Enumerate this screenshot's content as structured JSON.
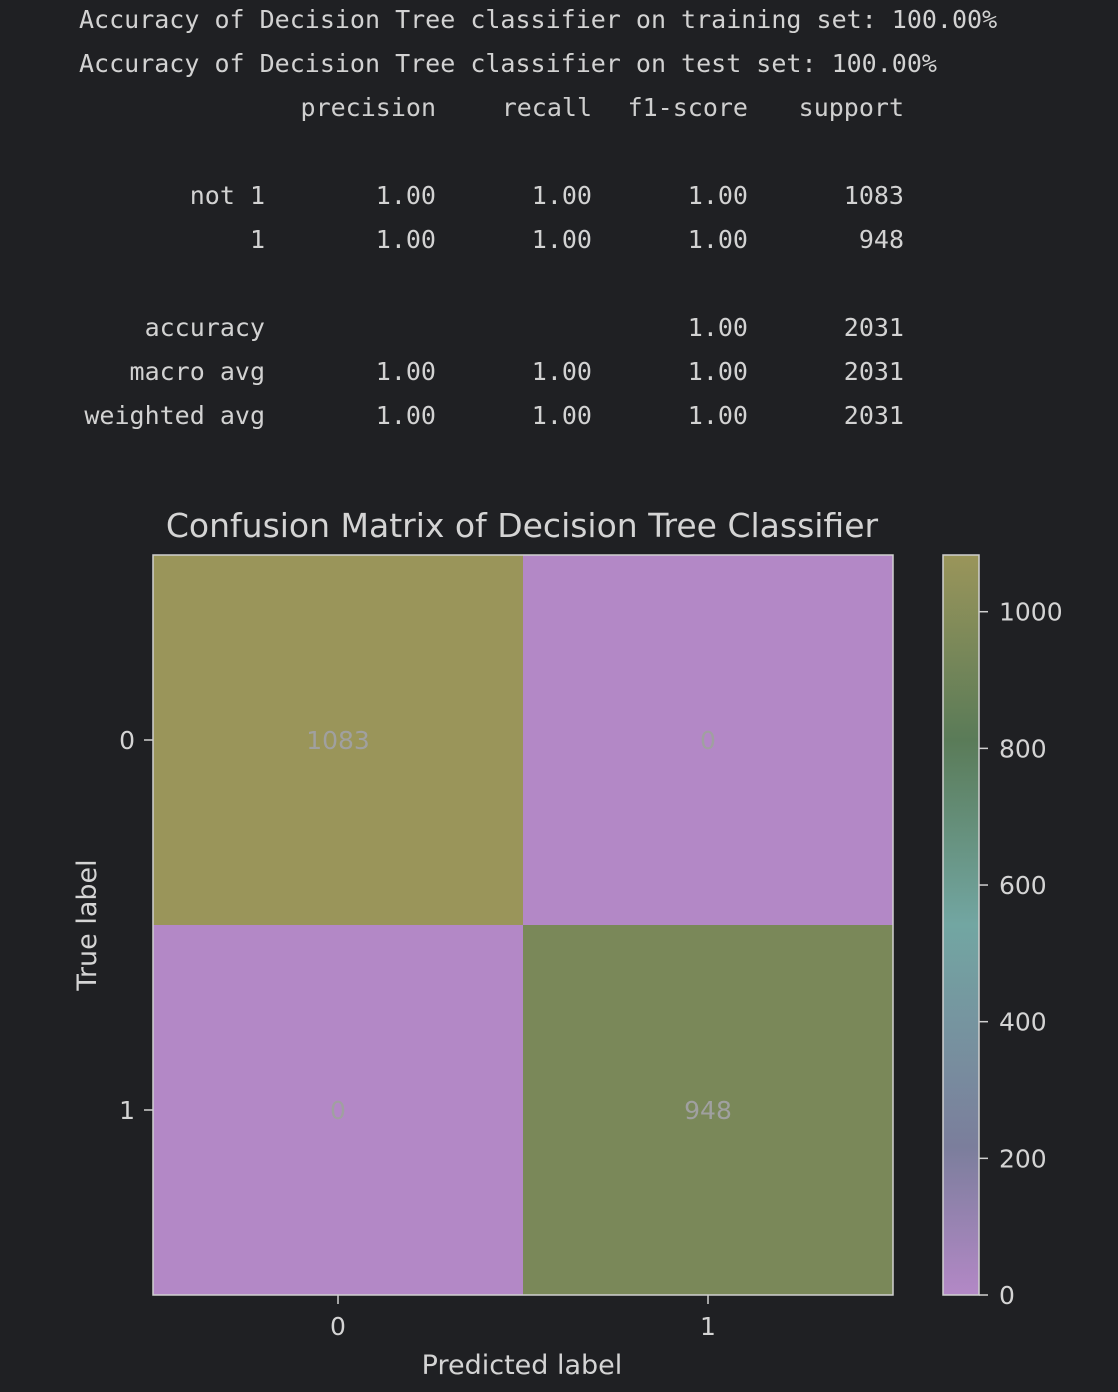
{
  "console": {
    "train_line": "Accuracy of Decision Tree classifier on training set: 100.00%",
    "test_line": "Accuracy of Decision Tree classifier on test set: 100.00%",
    "report": {
      "columns": [
        "precision",
        "recall",
        "f1-score",
        "support"
      ],
      "rows": [
        {
          "label": "not 1",
          "precision": "1.00",
          "recall": "1.00",
          "f1": "1.00",
          "support": "1083"
        },
        {
          "label": "1",
          "precision": "1.00",
          "recall": "1.00",
          "f1": "1.00",
          "support": "948"
        },
        {
          "label": "accuracy",
          "precision": "",
          "recall": "",
          "f1": "1.00",
          "support": "2031"
        },
        {
          "label": "macro avg",
          "precision": "1.00",
          "recall": "1.00",
          "f1": "1.00",
          "support": "2031"
        },
        {
          "label": "weighted avg",
          "precision": "1.00",
          "recall": "1.00",
          "f1": "1.00",
          "support": "2031"
        }
      ]
    }
  },
  "chart_data": {
    "type": "heatmap",
    "title": "Confusion Matrix of Decision Tree Classifier",
    "xlabel": "Predicted label",
    "ylabel": "True label",
    "x_ticks": [
      "0",
      "1"
    ],
    "y_ticks": [
      "0",
      "1"
    ],
    "matrix": [
      [
        1083,
        0
      ],
      [
        0,
        948
      ]
    ],
    "colorbar": {
      "range": [
        0,
        1083
      ],
      "ticks": [
        0,
        200,
        400,
        600,
        800,
        1000
      ],
      "tick_labels": [
        "0",
        "200",
        "400",
        "600",
        "800",
        "1000"
      ]
    },
    "colors": {
      "low": "#b388c6",
      "mid_low": "#7b7e9c",
      "mid": "#72a6a2",
      "mid_high": "#5a7b58",
      "high": "#9a955a",
      "cell_text": "#a0a0a0",
      "background": "#1f2023",
      "axis": "#d0d0d0"
    },
    "grid": false
  }
}
